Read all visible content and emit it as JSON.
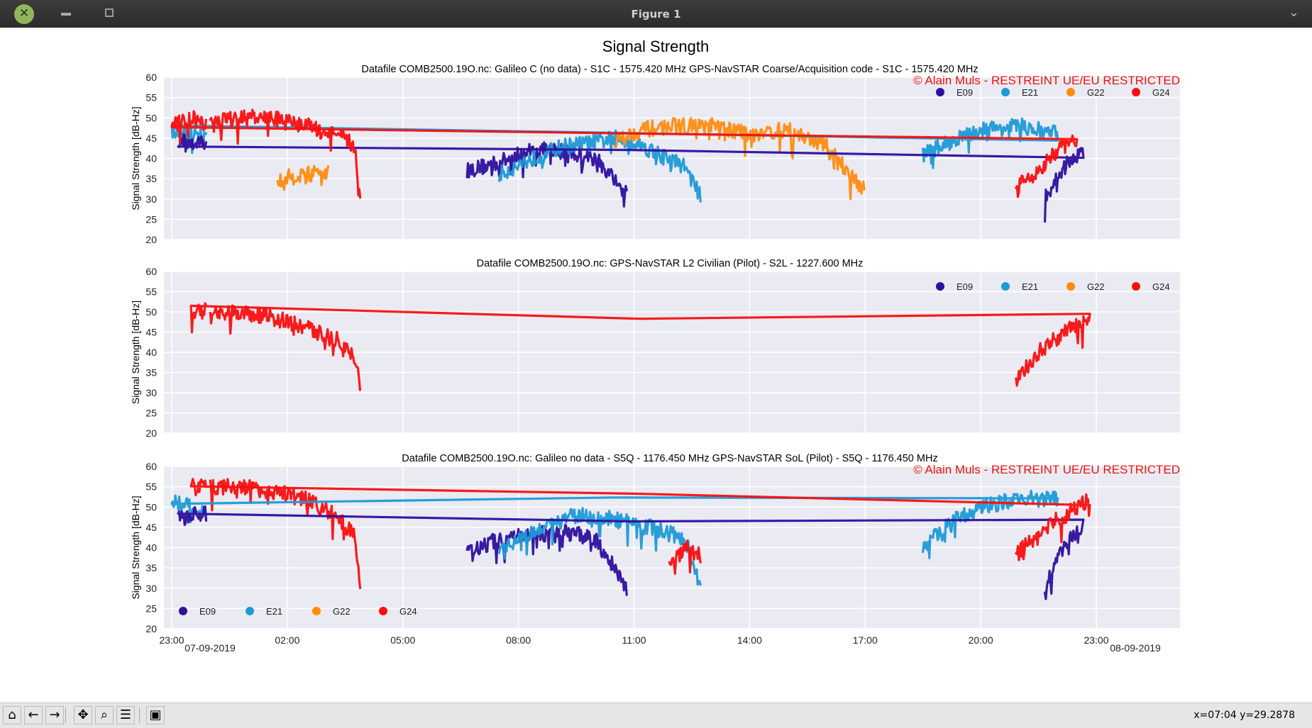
{
  "window": {
    "title": "Figure 1",
    "close_icon": "close-icon",
    "minimize_icon": "minimize-icon",
    "maximize_icon": "maximize-icon",
    "menu_icon": "chevron-down-icon"
  },
  "toolbar": {
    "buttons": [
      {
        "name": "home",
        "icon": "home-icon",
        "glyph": "⌂"
      },
      {
        "name": "back",
        "icon": "arrow-left-icon",
        "glyph": "←"
      },
      {
        "name": "forward",
        "icon": "arrow-right-icon",
        "glyph": "→"
      },
      {
        "name": "pan",
        "icon": "move-icon",
        "glyph": "✥"
      },
      {
        "name": "zoom",
        "icon": "magnifier-icon",
        "glyph": "⌕"
      },
      {
        "name": "configure",
        "icon": "sliders-icon",
        "glyph": "☰"
      },
      {
        "name": "save",
        "icon": "floppy-icon",
        "glyph": "▣"
      }
    ],
    "coordinates": "x=07:04 y=29.2878"
  },
  "colors": {
    "E09": "#2e0f9e",
    "E21": "#1e9ad6",
    "G22": "#ff8c0f",
    "G24": "#fa0f0f",
    "plot_bg": "#eaeaf2",
    "grid": "#ffffff",
    "copyright": "#e8140f"
  },
  "chart_data": {
    "suptitle": "Signal Strength",
    "copyright": "© Alain Muls - RESTREINT UE/EU RESTRICTED",
    "x_axis": {
      "ticks": [
        "23:00",
        "02:00",
        "05:00",
        "08:00",
        "11:00",
        "14:00",
        "17:00",
        "20:00",
        "23:00"
      ],
      "start_date": "07-09-2019",
      "end_date": "08-09-2019"
    },
    "charts": [
      {
        "type": "scatter",
        "title": "Datafile COMB2500.19O.nc: Galileo C (no data) - S1C - 1575.420 MHz  GPS-NavSTAR Coarse/Acquisition code - S1C - 1575.420 MHz",
        "ylabel": "Signal Strength [dB-Hz]",
        "ylim": [
          20,
          60
        ],
        "yticks": [
          "20",
          "25",
          "30",
          "35",
          "40",
          "45",
          "50",
          "55",
          "60"
        ],
        "copyright_shown": true,
        "legend": "top-right",
        "series": [
          {
            "name": "E09",
            "x": [
              "06:40",
              "07:30",
              "08:20",
              "09:10",
              "10:00",
              "10:50"
            ],
            "y": [
              37,
              39,
              42,
              42,
              40,
              31
            ]
          },
          {
            "name": "E21",
            "x": [
              "07:30",
              "08:20",
              "09:10",
              "10:00",
              "10:30",
              "11:00",
              "11:40",
              "12:20",
              "12:45"
            ],
            "y": [
              36,
              40,
              43,
              44,
              45,
              44,
              41,
              38,
              30
            ]
          },
          {
            "name": "G22",
            "x": [
              "01:45",
              "02:30",
              "03:05"
            ],
            "y": [
              35,
              36,
              37
            ]
          },
          {
            "name": "G22",
            "x": [
              "10:30",
              "11:10",
              "12:00",
              "13:00",
              "14:00",
              "15:00",
              "16:00",
              "17:00"
            ],
            "y": [
              44,
              47,
              48,
              48,
              46,
              47,
              43,
              32
            ]
          },
          {
            "name": "E21",
            "x": [
              "18:30",
              "19:10",
              "20:00",
              "21:00",
              "22:00",
              "23:00",
              "23:55"
            ],
            "y": [
              41,
              44,
              47,
              48,
              46,
              47,
              45
            ]
          },
          {
            "name": "E09",
            "x": [
              "21:40",
              "22:10",
              "22:40",
              "23:10",
              "23:55"
            ],
            "y": [
              30,
              38,
              42,
              44,
              44
            ]
          },
          {
            "name": "G24",
            "x": [
              "20:55",
              "21:30",
              "22:00",
              "22:30",
              "23:00",
              "23:30",
              "23:55"
            ],
            "y": [
              33,
              37,
              42,
              45,
              48,
              50,
              48
            ]
          },
          {
            "name": "G24",
            "x": [
              "00:00",
              "00:30",
              "01:30",
              "02:30",
              "03:15",
              "03:45",
              "03:55"
            ],
            "y": [
              48,
              50,
              50,
              48,
              46,
              43,
              30
            ]
          }
        ]
      },
      {
        "type": "scatter",
        "title": "Datafile COMB2500.19O.nc: GPS-NavSTAR L2 Civilian (Pilot) - S2L - 1227.600 MHz",
        "ylabel": "Signal Strength [dB-Hz]",
        "ylim": [
          20,
          60
        ],
        "yticks": [
          "20",
          "25",
          "30",
          "35",
          "40",
          "45",
          "50",
          "55",
          "60"
        ],
        "copyright_shown": false,
        "legend": "top-right",
        "series": [
          {
            "name": "G24",
            "x": [
              "00:00",
              "00:40",
              "01:30",
              "02:30",
              "03:20",
              "03:50",
              "03:55"
            ],
            "y": [
              50,
              50,
              49,
              46,
              43,
              38,
              29
            ]
          },
          {
            "name": "G24",
            "x": [
              "20:55",
              "21:30",
              "22:10",
              "22:50",
              "23:30",
              "23:55"
            ],
            "y": [
              33,
              40,
              45,
              48,
              50,
              51
            ]
          }
        ]
      },
      {
        "type": "scatter",
        "title": "Datafile COMB2500.19O.nc: Galileo no data - S5Q - 1176.450 MHz  GPS-NavSTAR SoL (Pilot) - S5Q - 1176.450 MHz",
        "ylabel": "Signal Strength [dB-Hz]",
        "ylim": [
          20,
          60
        ],
        "yticks": [
          "20",
          "25",
          "30",
          "35",
          "40",
          "45",
          "50",
          "55",
          "60"
        ],
        "copyright_shown": true,
        "legend": "bottom-left",
        "series": [
          {
            "name": "G24",
            "x": [
              "00:00",
              "00:50",
              "01:30",
              "02:30",
              "03:15",
              "03:45",
              "03:55"
            ],
            "y": [
              55,
              55,
              54,
              52,
              48,
              43,
              29
            ]
          },
          {
            "name": "E09",
            "x": [
              "06:40",
              "07:30",
              "08:20",
              "09:10",
              "10:00",
              "10:50"
            ],
            "y": [
              39,
              42,
              43,
              44,
              42,
              30
            ]
          },
          {
            "name": "E21",
            "x": [
              "07:30",
              "08:20",
              "09:30",
              "10:30",
              "11:30",
              "12:20",
              "12:45"
            ],
            "y": [
              39,
              44,
              48,
              47,
              45,
              42,
              30
            ]
          },
          {
            "name": "G24",
            "x": [
              "11:55",
              "12:20",
              "12:45"
            ],
            "y": [
              35,
              40,
              38
            ]
          },
          {
            "name": "E21",
            "x": [
              "18:30",
              "19:10",
              "20:00",
              "21:00",
              "22:00",
              "23:00",
              "23:55"
            ],
            "y": [
              40,
              46,
              50,
              52,
              52,
              52,
              48
            ]
          },
          {
            "name": "E09",
            "x": [
              "21:40",
              "22:10",
              "22:40",
              "23:10",
              "23:55"
            ],
            "y": [
              30,
              41,
              45,
              47,
              49
            ]
          },
          {
            "name": "G24",
            "x": [
              "20:55",
              "21:30",
              "22:10",
              "22:50",
              "23:30",
              "23:55"
            ],
            "y": [
              38,
              44,
              48,
              52,
              55,
              55
            ]
          }
        ]
      }
    ]
  }
}
